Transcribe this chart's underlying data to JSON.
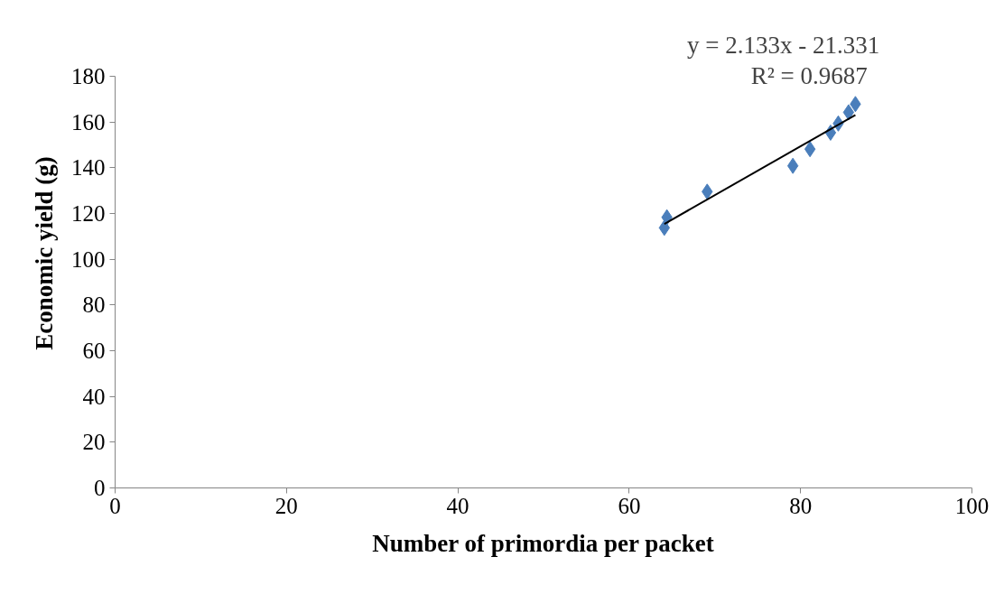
{
  "chart_data": {
    "type": "scatter",
    "xlabel": "Number of primordia per packet",
    "ylabel": "Economic yield (g)",
    "xlim": [
      0,
      100
    ],
    "xticks": [
      0,
      20,
      40,
      60,
      80,
      100
    ],
    "ylim": [
      0,
      180
    ],
    "yticks": [
      0,
      20,
      40,
      60,
      80,
      100,
      120,
      140,
      160,
      180
    ],
    "grid": false,
    "series": [
      {
        "color": "#4a7ebb",
        "marker": "diamond",
        "x": [
          64.1,
          64.4,
          69.1,
          79.1,
          81.1,
          83.5,
          84.4,
          85.6,
          86.4
        ],
        "values": [
          113.7,
          118.3,
          129.5,
          140.8,
          148.1,
          155.3,
          159.3,
          164.2,
          167.8
        ]
      },
      {
        "type": "line",
        "color": "#000000",
        "x": [
          64.1,
          86.4
        ],
        "values": [
          115.4,
          163.0
        ]
      }
    ],
    "annotations": [
      "y = 2.133x - 21.331",
      "R² = 0.9687"
    ]
  }
}
